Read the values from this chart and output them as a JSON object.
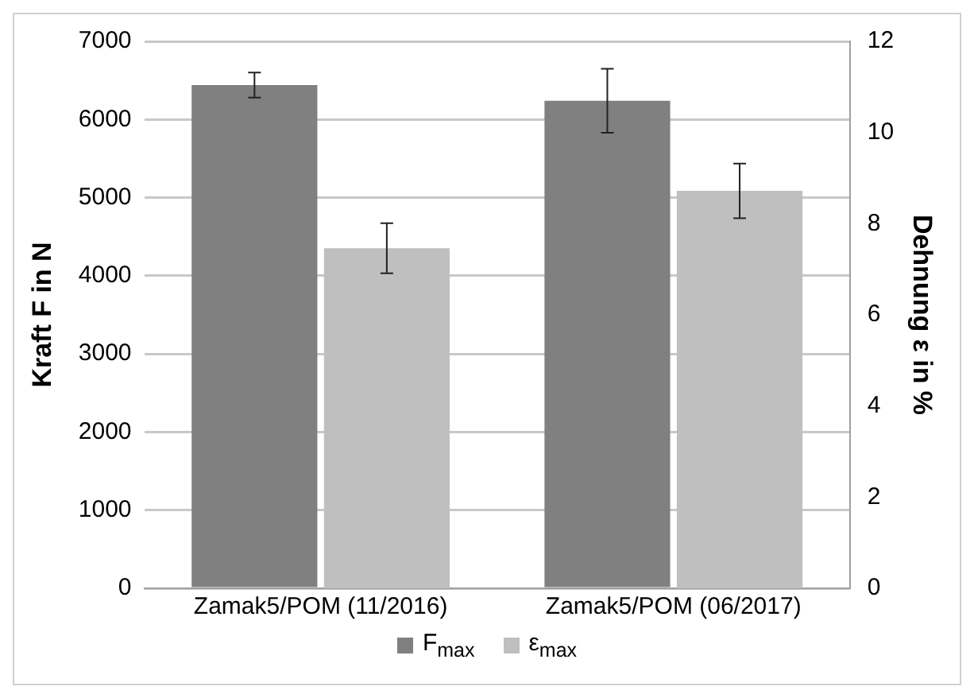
{
  "chart_data": {
    "type": "bar",
    "ylabel": "Kraft F in N",
    "y2label": "Dehnung ε in %",
    "categories": [
      "Zamak5/POM (11/2016)",
      "Zamak5/POM (06/2017)"
    ],
    "series": [
      {
        "name": "F$_{max}$",
        "color": "#808080",
        "values": [
          6440,
          6240
        ],
        "errors": [
          160,
          410
        ]
      },
      {
        "name": "ε$_{max}$",
        "color": "#bfbfbf",
        "axis": "y2",
        "values": [
          7.46,
          8.72
        ],
        "errors": [
          0.55,
          0.6
        ]
      }
    ],
    "ylim": [
      0,
      7000
    ],
    "yticks": [
      0,
      1000,
      2000,
      3000,
      4000,
      5000,
      6000,
      7000
    ],
    "y2lim": [
      0,
      12
    ],
    "y2ticks": [
      0,
      2,
      4,
      6,
      8,
      10,
      12
    ],
    "grid": "y",
    "legend": "bottom"
  }
}
